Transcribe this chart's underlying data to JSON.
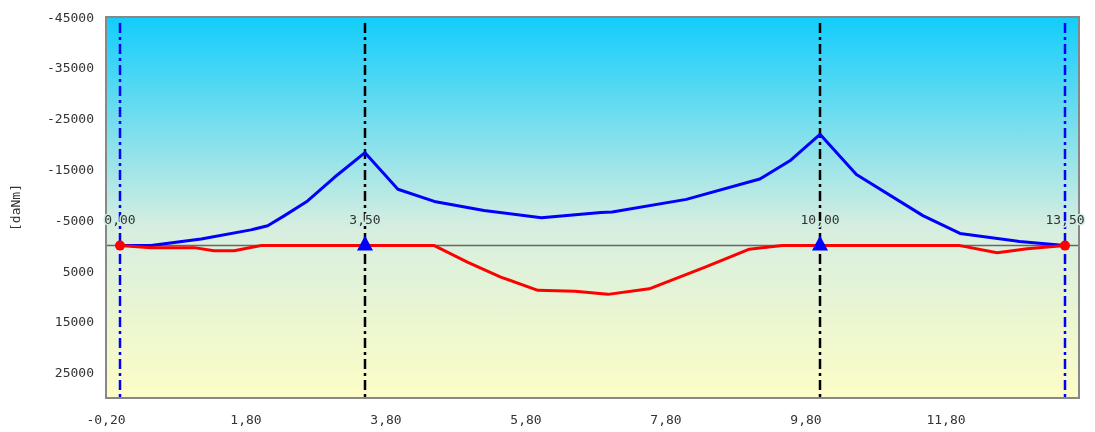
{
  "chart_data": {
    "type": "line",
    "ylabel": "[daNm]",
    "xlim": [
      -0.2,
      13.7
    ],
    "xticks": [
      {
        "value": -0.2,
        "label": "-0,20"
      },
      {
        "value": 1.8,
        "label": "1,80"
      },
      {
        "value": 3.8,
        "label": "3,80"
      },
      {
        "value": 5.8,
        "label": "5,80"
      },
      {
        "value": 7.8,
        "label": "7,80"
      },
      {
        "value": 9.8,
        "label": "9,80"
      },
      {
        "value": 11.8,
        "label": "11,80"
      }
    ],
    "ylim": [
      30000,
      -45000
    ],
    "yticks": [
      -45000,
      -35000,
      -25000,
      -15000,
      -5000,
      5000,
      15000,
      25000
    ],
    "grid": false,
    "marker": "none",
    "series": [
      {
        "color": "#0000ff",
        "x": [
          0,
          0.44,
          1.16,
          1.87,
          2.11,
          2.35,
          2.59,
          2.68,
          3.06,
          3.5,
          3.97,
          4.49,
          5.2,
          6.02,
          6.87,
          7.03,
          8.09,
          9.14,
          9.57,
          10,
          10.52,
          11.47,
          12,
          12.85,
          13.5
        ],
        "values": [
          0,
          0,
          -1300,
          -3100,
          -3900,
          -5900,
          -8000,
          -8800,
          -13400,
          -18300,
          -11100,
          -8700,
          -6900,
          -5500,
          -6500,
          -6600,
          -9100,
          -13100,
          -16700,
          -21900,
          -14000,
          -5900,
          -2400,
          -800,
          0
        ]
      },
      {
        "color": "#ff0000",
        "x": [
          0,
          0.44,
          1.06,
          1.34,
          1.63,
          2.01,
          4.49,
          4.97,
          5.44,
          5.97,
          6.5,
          6.97,
          7.56,
          8.35,
          8.99,
          9.46,
          12,
          12.53,
          12.96,
          13.5
        ],
        "values": [
          0,
          400,
          400,
          1000,
          1000,
          0,
          0,
          3300,
          6200,
          8800,
          9000,
          9600,
          8500,
          4300,
          700,
          0,
          0,
          1400,
          600,
          0
        ]
      },
      {
        "type": "scatter",
        "marker": "circle",
        "color": "#ff0000",
        "x": [
          0,
          13.5
        ],
        "values": [
          0,
          0
        ]
      },
      {
        "type": "scatter",
        "marker": "triangle",
        "color": "#0000ff",
        "x": [
          3.5,
          10
        ],
        "values": [
          0,
          0
        ]
      }
    ],
    "ref_lines": [
      {
        "axis": "y",
        "value": 0,
        "color": "#666666",
        "line_style": "solid"
      },
      {
        "axis": "x",
        "value": 0,
        "label": "0,00",
        "color": "#0000ff",
        "line_style": "dashed"
      },
      {
        "axis": "x",
        "value": 3.5,
        "label": "3,50",
        "color": "#000000",
        "line_style": "dashed"
      },
      {
        "axis": "x",
        "value": 10,
        "label": "10,00",
        "color": "#000000",
        "line_style": "dashed"
      },
      {
        "axis": "x",
        "value": 13.5,
        "label": "13,50",
        "color": "#0000ff",
        "line_style": "dashed"
      }
    ]
  }
}
